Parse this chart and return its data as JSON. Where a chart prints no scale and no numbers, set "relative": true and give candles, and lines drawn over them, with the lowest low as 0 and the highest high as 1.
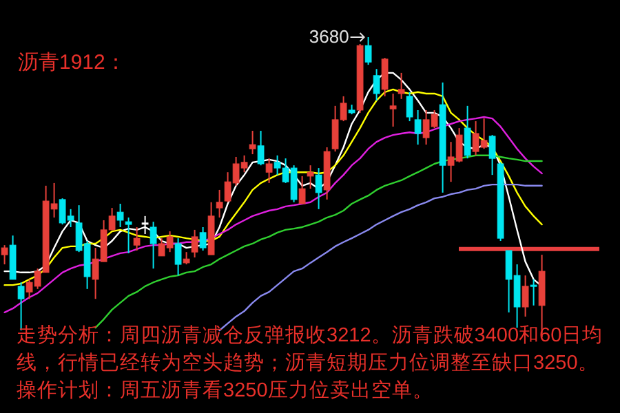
{
  "chart_data": {
    "type": "candlestick",
    "relative": true,
    "title": "沥青1912：",
    "categories": [
      null,
      null,
      null,
      null,
      null,
      null,
      null,
      null,
      null,
      null,
      null,
      null,
      null,
      null,
      null,
      null,
      null,
      null,
      null,
      null,
      null,
      null,
      null,
      null,
      null,
      null,
      null,
      null,
      null,
      null,
      null,
      null,
      null,
      null,
      null,
      null,
      null,
      null,
      null,
      null,
      null,
      null,
      null,
      null,
      null,
      null,
      null,
      null,
      null,
      null,
      null,
      null,
      null,
      null,
      null,
      null,
      null,
      null,
      null,
      null,
      null,
      null,
      null,
      null,
      null,
      null
    ],
    "ohlc": [
      [
        0.275,
        0.307,
        0.243,
        0.298
      ],
      [
        0.307,
        0.339,
        0.193,
        0.193
      ],
      [
        0.17,
        0.183,
        0.023,
        0.128
      ],
      [
        0.151,
        0.193,
        0.128,
        0.183
      ],
      [
        0.17,
        0.229,
        0.161,
        0.22
      ],
      [
        0.216,
        0.505,
        0.216,
        0.454
      ],
      [
        0.427,
        0.514,
        0.399,
        0.445
      ],
      [
        0.459,
        0.463,
        0.376,
        0.381
      ],
      [
        0.404,
        0.427,
        0.367,
        0.39
      ],
      [
        0.381,
        0.44,
        0.284,
        0.289
      ],
      [
        0.312,
        0.321,
        0.161,
        0.202
      ],
      [
        0.193,
        0.298,
        0.128,
        0.261
      ],
      [
        0.252,
        0.39,
        0.252,
        0.358
      ],
      [
        0.358,
        0.431,
        0.358,
        0.404
      ],
      [
        0.417,
        0.445,
        0.367,
        0.39
      ],
      [
        0.385,
        0.399,
        0.28,
        0.376
      ],
      [
        0.307,
        0.367,
        0.289,
        0.33
      ],
      [
        0.381,
        0.404,
        0.344,
        0.381
      ],
      [
        0.367,
        0.385,
        0.229,
        0.312
      ],
      [
        0.271,
        0.33,
        0.271,
        0.312
      ],
      [
        0.298,
        0.353,
        0.284,
        0.335
      ],
      [
        0.312,
        0.33,
        0.206,
        0.243
      ],
      [
        0.248,
        0.284,
        0.243,
        0.261
      ],
      [
        0.284,
        0.358,
        0.266,
        0.335
      ],
      [
        0.349,
        0.367,
        0.289,
        0.298
      ],
      [
        0.275,
        0.45,
        0.275,
        0.404
      ],
      [
        0.431,
        0.491,
        0.399,
        0.45
      ],
      [
        0.454,
        0.55,
        0.45,
        0.518
      ],
      [
        0.514,
        0.601,
        0.505,
        0.578
      ],
      [
        0.564,
        0.606,
        0.55,
        0.583
      ],
      [
        0.628,
        0.688,
        0.61,
        0.642
      ],
      [
        0.638,
        0.688,
        0.573,
        0.578
      ],
      [
        0.55,
        0.596,
        0.514,
        0.578
      ],
      [
        0.583,
        0.606,
        0.541,
        0.564
      ],
      [
        0.564,
        0.596,
        0.514,
        0.518
      ],
      [
        0.564,
        0.573,
        0.45,
        0.459
      ],
      [
        0.445,
        0.537,
        0.445,
        0.495
      ],
      [
        0.537,
        0.573,
        0.495,
        0.55
      ],
      [
        0.541,
        0.564,
        0.427,
        0.482
      ],
      [
        0.491,
        0.633,
        0.459,
        0.619
      ],
      [
        0.628,
        0.771,
        0.619,
        0.725
      ],
      [
        0.725,
        0.803,
        0.72,
        0.78
      ],
      [
        0.757,
        0.775,
        0.743,
        0.748
      ],
      [
        0.757,
        0.977,
        0.748,
        0.972
      ],
      [
        0.972,
        1,
        0.908,
        0.917
      ],
      [
        0.872,
        0.894,
        0.789,
        0.812
      ],
      [
        0.826,
        0.931,
        0.803,
        0.927
      ],
      [
        0.761,
        0.812,
        0.702,
        0.771
      ],
      [
        0.812,
        0.881,
        0.794,
        0.826
      ],
      [
        0.803,
        0.817,
        0.72,
        0.734
      ],
      [
        0.725,
        0.757,
        0.642,
        0.679
      ],
      [
        0.665,
        0.757,
        0.642,
        0.725
      ],
      [
        0.702,
        0.757,
        0.697,
        0.743
      ],
      [
        0.775,
        0.849,
        0.482,
        0.573
      ],
      [
        0.573,
        0.651,
        0.518,
        0.601
      ],
      [
        0.587,
        0.697,
        0.583,
        0.674
      ],
      [
        0.697,
        0.771,
        0.596,
        0.606
      ],
      [
        0.619,
        0.72,
        0.606,
        0.679
      ],
      [
        0.633,
        0.729,
        0.628,
        0.656
      ],
      [
        0.67,
        0.674,
        0.541,
        0.596
      ],
      [
        0.578,
        0.583,
        0.321,
        0.33
      ],
      [
        0.289,
        0.289,
        0.083,
        0.193
      ],
      [
        0.206,
        0.243,
        0.032,
        0.101
      ],
      [
        0.101,
        0.206,
        0.069,
        0.17
      ],
      [
        0.174,
        0.193,
        0.106,
        0.17
      ],
      [
        0.106,
        0.275,
        0,
        0.22
      ]
    ],
    "colors": [
      "#e8413a",
      "#00e5f0",
      "#00e5f0",
      "#e8413a",
      "#e8413a",
      "#e8413a",
      "#e8413a",
      "#00e5f0",
      "#00e5f0",
      "#00e5f0",
      "#00e5f0",
      "#e8413a",
      "#e8413a",
      "#e8413a",
      "#00e5f0",
      "#00e5f0",
      "#e8413a",
      "#ffffff",
      "#00e5f0",
      "#e8413a",
      "#e8413a",
      "#00e5f0",
      "#e8413a",
      "#e8413a",
      "#00e5f0",
      "#e8413a",
      "#e8413a",
      "#e8413a",
      "#e8413a",
      "#e8413a",
      "#e8413a",
      "#00e5f0",
      "#e8413a",
      "#00e5f0",
      "#00e5f0",
      "#00e5f0",
      "#e8413a",
      "#e8413a",
      "#00e5f0",
      "#e8413a",
      "#e8413a",
      "#e8413a",
      "#00e5f0",
      "#e8413a",
      "#00e5f0",
      "#00e5f0",
      "#e8413a",
      "#e8413a",
      "#e8413a",
      "#00e5f0",
      "#00e5f0",
      "#e8413a",
      "#e8413a",
      "#00e5f0",
      "#e8413a",
      "#e8413a",
      "#00e5f0",
      "#e8413a",
      "#e8413a",
      "#00e5f0",
      "#00e5f0",
      "#00e5f0",
      "#00e5f0",
      "#e8413a",
      "#00e5f0",
      "#e8413a"
    ],
    "series": [
      {
        "type": "line",
        "color": "#ffffff",
        "values": [
          0.22,
          0.22,
          0.216,
          0.216,
          0.22,
          0.239,
          0.298,
          0.353,
          0.39,
          0.381,
          0.321,
          0.307,
          0.298,
          0.321,
          0.353,
          0.362,
          0.358,
          0.367,
          0.353,
          0.321,
          0.312,
          0.312,
          0.298,
          0.303,
          0.307,
          0.312,
          0.367,
          0.445,
          0.505,
          0.541,
          0.583,
          0.587,
          0.592,
          0.587,
          0.573,
          0.541,
          0.505,
          0.514,
          0.495,
          0.518,
          0.573,
          0.633,
          0.711,
          0.757,
          0.817,
          0.858,
          0.881,
          0.881,
          0.858,
          0.826,
          0.789,
          0.748,
          0.748,
          0.734,
          0.697,
          0.651,
          0.633,
          0.628,
          0.642,
          0.633,
          0.573,
          0.468,
          0.358,
          0.252,
          0.193,
          0.17
        ]
      },
      {
        "type": "line",
        "color": "#ffff00",
        "values": [
          0.174,
          0.174,
          0.179,
          0.193,
          0.206,
          0.229,
          0.266,
          0.298,
          0.303,
          0.303,
          0.312,
          0.312,
          0.33,
          0.353,
          0.358,
          0.349,
          0.339,
          0.335,
          0.33,
          0.335,
          0.339,
          0.335,
          0.33,
          0.326,
          0.321,
          0.321,
          0.335,
          0.376,
          0.413,
          0.45,
          0.491,
          0.514,
          0.528,
          0.541,
          0.55,
          0.55,
          0.55,
          0.55,
          0.546,
          0.55,
          0.573,
          0.606,
          0.651,
          0.697,
          0.748,
          0.789,
          0.817,
          0.826,
          0.817,
          0.812,
          0.817,
          0.812,
          0.812,
          0.803,
          0.748,
          0.725,
          0.697,
          0.674,
          0.656,
          0.633,
          0.587,
          0.537,
          0.482,
          0.436,
          0.404,
          0.376
        ]
      },
      {
        "type": "line",
        "color": "#e020e0",
        "values": [
          0.083,
          0.096,
          0.115,
          0.133,
          0.147,
          0.17,
          0.193,
          0.216,
          0.229,
          0.239,
          0.243,
          0.252,
          0.261,
          0.271,
          0.28,
          0.284,
          0.294,
          0.303,
          0.307,
          0.307,
          0.312,
          0.312,
          0.317,
          0.317,
          0.321,
          0.33,
          0.344,
          0.358,
          0.376,
          0.39,
          0.404,
          0.413,
          0.422,
          0.427,
          0.436,
          0.44,
          0.445,
          0.45,
          0.468,
          0.482,
          0.514,
          0.541,
          0.573,
          0.596,
          0.628,
          0.651,
          0.665,
          0.674,
          0.679,
          0.683,
          0.679,
          0.683,
          0.693,
          0.702,
          0.711,
          0.72,
          0.725,
          0.729,
          0.734,
          0.729,
          0.702,
          0.665,
          0.628,
          0.596,
          0.569,
          0.546
        ]
      },
      {
        "type": "line",
        "color": "#30d030",
        "values": [
          null,
          null,
          null,
          null,
          null,
          null,
          null,
          null,
          null,
          null,
          null,
          0.032,
          0.06,
          0.092,
          0.115,
          0.138,
          0.151,
          0.17,
          0.183,
          0.193,
          0.202,
          0.206,
          0.216,
          0.22,
          0.234,
          0.243,
          0.261,
          0.275,
          0.289,
          0.303,
          0.312,
          0.326,
          0.335,
          0.349,
          0.358,
          0.362,
          0.367,
          0.376,
          0.385,
          0.399,
          0.408,
          0.422,
          0.445,
          0.459,
          0.472,
          0.491,
          0.505,
          0.514,
          0.523,
          0.537,
          0.55,
          0.564,
          0.578,
          0.587,
          0.592,
          0.596,
          0.601,
          0.606,
          0.606,
          0.606,
          0.601,
          0.596,
          0.592,
          0.587,
          0.587,
          0.587
        ]
      },
      {
        "type": "line",
        "color": "#8a8af0",
        "values": [
          null,
          null,
          null,
          null,
          null,
          null,
          null,
          null,
          null,
          null,
          null,
          null,
          null,
          null,
          null,
          null,
          null,
          null,
          null,
          null,
          null,
          null,
          null,
          null,
          null,
          null,
          0.023,
          0.046,
          0.069,
          0.087,
          0.115,
          0.138,
          0.151,
          0.174,
          0.197,
          0.22,
          0.229,
          0.248,
          0.266,
          0.284,
          0.303,
          0.317,
          0.33,
          0.344,
          0.358,
          0.376,
          0.39,
          0.404,
          0.417,
          0.427,
          0.44,
          0.45,
          0.463,
          0.468,
          0.477,
          0.482,
          0.491,
          0.495,
          0.505,
          0.509,
          0.509,
          0.509,
          0.509,
          0.505,
          0.505,
          0.505
        ]
      }
    ],
    "ref_lines": [
      {
        "axis": "y",
        "value": 0.294,
        "color": "#e84040"
      }
    ],
    "annotations": [
      "3680",
      "走势分析：周四沥青减仓反弹报收3212。沥青跌破3400和60日均线，行情已经转为空头趋势；沥青短期压力位调整至缺口3250。",
      "操作计划：周五沥青看3250压力位卖出空单。"
    ]
  }
}
